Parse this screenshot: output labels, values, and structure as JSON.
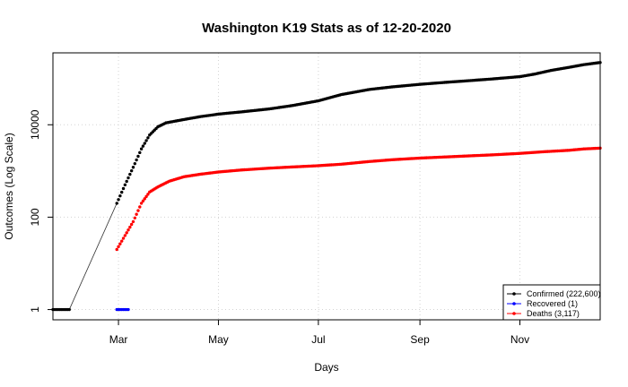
{
  "chart_data": {
    "type": "scatter",
    "title": "Washington K19 Stats as of 12-20-2020",
    "xlabel": "Days",
    "ylabel": "Outcomes (Log Scale)",
    "y_scale": "log",
    "ylim": [
      0.6,
      360000
    ],
    "xlim": [
      "2020-01-21",
      "2020-12-20"
    ],
    "x_ticks": [
      {
        "date": "2020-03-01",
        "label": "Mar"
      },
      {
        "date": "2020-05-01",
        "label": "May"
      },
      {
        "date": "2020-07-01",
        "label": "Jul"
      },
      {
        "date": "2020-09-01",
        "label": "Sep"
      },
      {
        "date": "2020-11-01",
        "label": "Nov"
      }
    ],
    "y_ticks": [
      {
        "value": 1,
        "label": "1"
      },
      {
        "value": 100,
        "label": "100"
      },
      {
        "value": 10000,
        "label": "10000"
      }
    ],
    "grid": true,
    "legend_position": "bottom-right",
    "series": [
      {
        "name": "Confirmed (222,600)",
        "color": "#000000",
        "points": [
          [
            "2020-01-21",
            1
          ],
          [
            "2020-01-31",
            1
          ],
          [
            "2020-02-29",
            200
          ],
          [
            "2020-03-05",
            500
          ],
          [
            "2020-03-10",
            1200
          ],
          [
            "2020-03-15",
            3000
          ],
          [
            "2020-03-20",
            6000
          ],
          [
            "2020-03-25",
            9000
          ],
          [
            "2020-03-30",
            11000
          ],
          [
            "2020-04-10",
            13000
          ],
          [
            "2020-04-20",
            15000
          ],
          [
            "2020-05-01",
            17000
          ],
          [
            "2020-05-15",
            19000
          ],
          [
            "2020-06-01",
            22000
          ],
          [
            "2020-06-15",
            26000
          ],
          [
            "2020-07-01",
            33000
          ],
          [
            "2020-07-15",
            45000
          ],
          [
            "2020-08-01",
            58000
          ],
          [
            "2020-08-15",
            66000
          ],
          [
            "2020-09-01",
            75000
          ],
          [
            "2020-09-15",
            82000
          ],
          [
            "2020-10-01",
            90000
          ],
          [
            "2020-10-15",
            98000
          ],
          [
            "2020-11-01",
            110000
          ],
          [
            "2020-11-10",
            125000
          ],
          [
            "2020-11-20",
            150000
          ],
          [
            "2020-12-01",
            175000
          ],
          [
            "2020-12-10",
            200000
          ],
          [
            "2020-12-20",
            222600
          ]
        ]
      },
      {
        "name": "Recovered (1)",
        "color": "#0000ff",
        "points": [
          [
            "2020-02-29",
            1
          ],
          [
            "2020-03-07",
            1
          ]
        ]
      },
      {
        "name": "Deaths (3,117)",
        "color": "#ff0000",
        "points": [
          [
            "2020-02-29",
            20
          ],
          [
            "2020-03-05",
            40
          ],
          [
            "2020-03-10",
            80
          ],
          [
            "2020-03-15",
            200
          ],
          [
            "2020-03-20",
            350
          ],
          [
            "2020-03-25",
            450
          ],
          [
            "2020-04-01",
            600
          ],
          [
            "2020-04-10",
            750
          ],
          [
            "2020-04-20",
            850
          ],
          [
            "2020-05-01",
            950
          ],
          [
            "2020-05-15",
            1050
          ],
          [
            "2020-06-01",
            1150
          ],
          [
            "2020-06-15",
            1220
          ],
          [
            "2020-07-01",
            1300
          ],
          [
            "2020-07-15",
            1400
          ],
          [
            "2020-08-01",
            1600
          ],
          [
            "2020-08-15",
            1750
          ],
          [
            "2020-09-01",
            1900
          ],
          [
            "2020-09-15",
            2000
          ],
          [
            "2020-10-01",
            2120
          ],
          [
            "2020-10-15",
            2230
          ],
          [
            "2020-11-01",
            2400
          ],
          [
            "2020-11-15",
            2600
          ],
          [
            "2020-12-01",
            2800
          ],
          [
            "2020-12-10",
            3000
          ],
          [
            "2020-12-20",
            3117
          ]
        ]
      }
    ]
  }
}
